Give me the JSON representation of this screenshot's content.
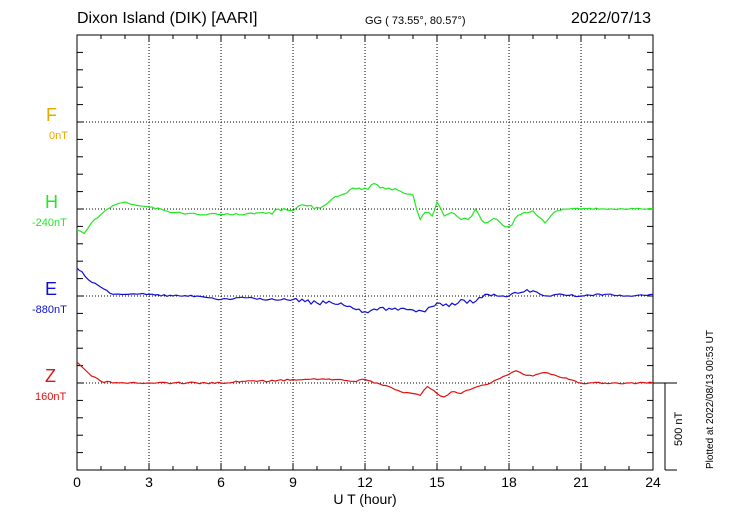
{
  "header": {
    "station": "Dixon Island (DIK)  [AARI]",
    "coords": "GG ( 73.55°,  80.57°)",
    "date": "2022/07/13"
  },
  "side_note": "Plotted at 2022/08/13 00:53 UT",
  "scale_bar": {
    "label": "500 nT",
    "value_nT": 500
  },
  "colors": {
    "F": "#e8a800",
    "H": "#22e822",
    "E": "#1010d0",
    "Z": "#e01010",
    "axis": "#000000",
    "grid": "#000000"
  },
  "components": [
    {
      "id": "F",
      "letter": "F",
      "baseline_label": "0nT"
    },
    {
      "id": "H",
      "letter": "H",
      "baseline_label": "-240nT"
    },
    {
      "id": "E",
      "letter": "E",
      "baseline_label": "-880nT"
    },
    {
      "id": "Z",
      "letter": "Z",
      "baseline_label": "160nT"
    }
  ],
  "chart_data": {
    "type": "line",
    "title": "Dixon Island (DIK)  [AARI]",
    "xlabel": "U T (hour)",
    "xlim": [
      0,
      24
    ],
    "xticks": [
      0,
      3,
      6,
      9,
      12,
      15,
      18,
      21,
      24
    ],
    "ylim_nT": [
      -1000,
      1000
    ],
    "grid": true,
    "series": [
      {
        "name": "H",
        "baseline_nT": -240,
        "x": [
          0,
          0.3,
          0.6,
          1.0,
          1.5,
          2.0,
          2.5,
          3.0,
          3.5,
          4.0,
          5.0,
          6.0,
          7.0,
          8.0,
          8.5,
          9.0,
          9.5,
          10.0,
          10.5,
          11.0,
          11.5,
          12.0,
          12.5,
          13.0,
          13.5,
          14.0,
          14.3,
          14.5,
          14.8,
          15.0,
          15.3,
          15.6,
          16.0,
          16.3,
          16.6,
          17.0,
          17.5,
          18.0,
          18.5,
          19.0,
          19.5,
          20.0,
          20.5,
          21.0,
          22.0,
          23.0,
          24.0
        ],
        "values": [
          -60,
          -70,
          -40,
          -15,
          10,
          20,
          10,
          5,
          0,
          -10,
          -15,
          -15,
          -15,
          -10,
          -5,
          -5,
          10,
          5,
          20,
          40,
          60,
          60,
          70,
          60,
          50,
          40,
          -30,
          -10,
          -20,
          20,
          -20,
          -10,
          -30,
          -30,
          0,
          -40,
          -30,
          -50,
          -15,
          -5,
          -40,
          -5,
          0,
          0,
          0,
          0,
          0
        ]
      },
      {
        "name": "E",
        "baseline_nT": -880,
        "x": [
          0,
          0.2,
          0.5,
          1.0,
          1.5,
          2.0,
          3.0,
          4.0,
          5.0,
          5.5,
          6.0,
          7.0,
          8.0,
          9.0,
          10.0,
          11.0,
          11.5,
          12.0,
          12.5,
          13.0,
          14.0,
          14.5,
          14.8,
          15.0,
          15.5,
          16.0,
          16.5,
          17.0,
          17.5,
          18.0,
          18.5,
          19.0,
          19.3,
          19.6,
          20.0,
          21.0,
          22.0,
          23.0,
          24.0
        ],
        "values": [
          80,
          70,
          45,
          25,
          5,
          5,
          5,
          0,
          0,
          -5,
          -10,
          -5,
          -10,
          -10,
          -20,
          -20,
          -35,
          -45,
          -40,
          -35,
          -40,
          -45,
          -30,
          -20,
          -30,
          -10,
          -20,
          5,
          0,
          0,
          10,
          15,
          5,
          0,
          5,
          0,
          5,
          0,
          5
        ]
      },
      {
        "name": "Z",
        "baseline_nT": 160,
        "x": [
          0,
          0.3,
          0.6,
          1.0,
          1.5,
          2.0,
          3.0,
          4.0,
          5.0,
          6.0,
          7.0,
          8.0,
          9.0,
          10.0,
          11.0,
          11.5,
          12.0,
          12.5,
          13.0,
          13.5,
          14.0,
          14.3,
          14.6,
          15.0,
          15.3,
          15.6,
          16.0,
          16.5,
          17.0,
          17.5,
          18.0,
          18.3,
          18.6,
          19.0,
          19.5,
          20.0,
          20.5,
          21.0,
          22.0,
          23.0,
          24.0
        ],
        "values": [
          60,
          40,
          20,
          5,
          0,
          0,
          0,
          0,
          0,
          0,
          5,
          5,
          10,
          10,
          10,
          5,
          10,
          0,
          -10,
          -25,
          -30,
          -35,
          -10,
          -30,
          -40,
          -25,
          -30,
          -15,
          -5,
          10,
          25,
          35,
          25,
          20,
          30,
          20,
          10,
          0,
          0,
          0,
          0
        ]
      }
    ]
  }
}
